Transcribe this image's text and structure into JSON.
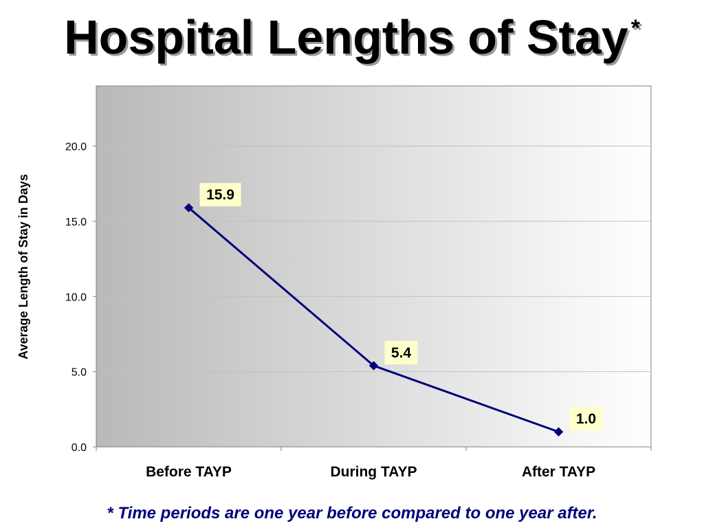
{
  "title": "Hospital Lengths of Stay",
  "title_mark": "*",
  "footnote": "* Time periods are one year before compared to one year after.",
  "colors": {
    "line": "#00007a",
    "footnote": "#00007a",
    "label_bg": "#ffffcc",
    "plot_gradient_start": "#b9b9b9",
    "plot_gradient_end": "#ffffff",
    "gridline": "#c0c0c0"
  },
  "chart_data": {
    "type": "line",
    "title": "Hospital Lengths of Stay",
    "xlabel": "",
    "ylabel": "Average Length of Stay in Days",
    "categories": [
      "Before TAYP",
      "During TAYP",
      "After TAYP"
    ],
    "series": [
      {
        "values": [
          15.9,
          5.4,
          1.0
        ],
        "marker": "diamond",
        "data_labels": [
          "15.9",
          "5.4",
          "1.0"
        ]
      }
    ],
    "ylim": [
      0,
      24
    ],
    "yticks": [
      0,
      5,
      10,
      15,
      20
    ],
    "ytick_labels": [
      "0.0",
      "5.0",
      "10.0",
      "15.0",
      "20.0"
    ],
    "grid": true,
    "legend": "none"
  }
}
